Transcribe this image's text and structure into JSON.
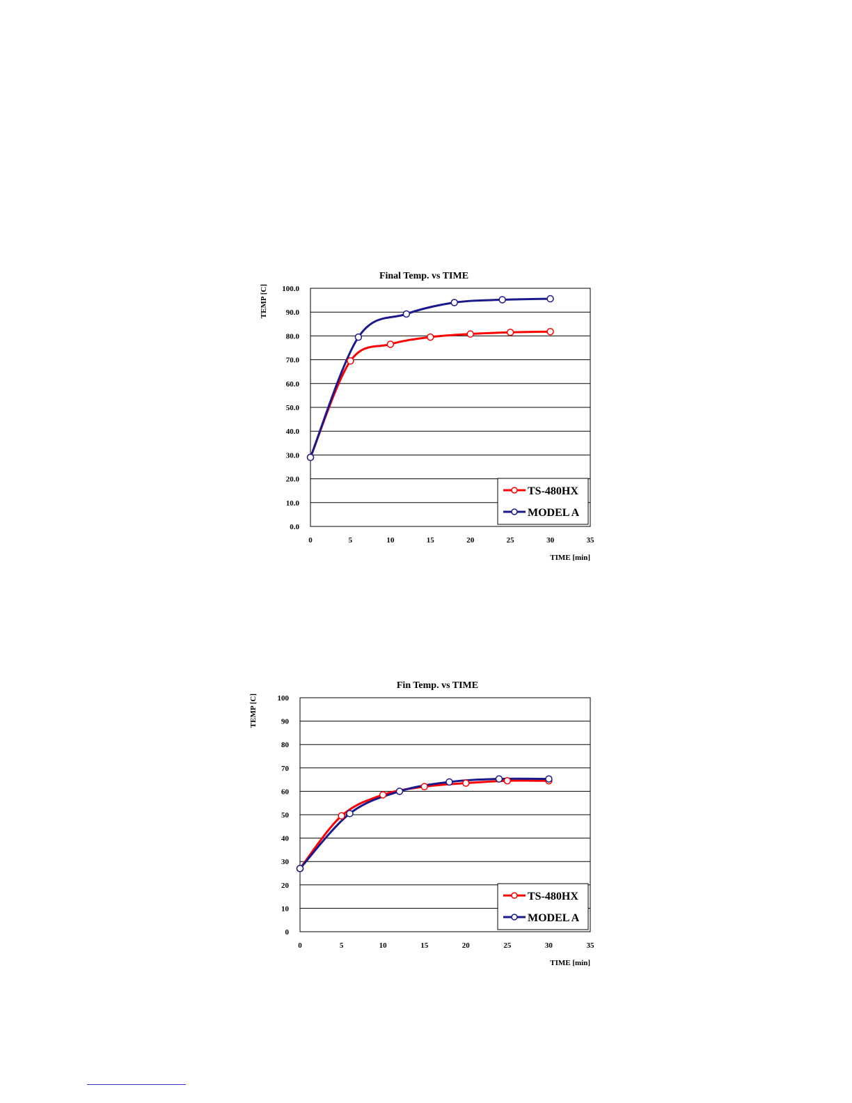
{
  "colors": {
    "series_1": "#ff0000",
    "series_2": "#1a1a8c",
    "grid": "#000000",
    "border": "#000000"
  },
  "chart_data": [
    {
      "type": "line",
      "title": "Final Temp. vs TIME",
      "ylabel": "TEMP [C]",
      "xlabel": "TIME [min]",
      "xlim": [
        0,
        35
      ],
      "ylim": [
        0,
        100
      ],
      "xticks": [
        "0",
        "5",
        "10",
        "15",
        "20",
        "25",
        "30",
        "35"
      ],
      "yticks": [
        "0.0",
        "10.0",
        "20.0",
        "30.0",
        "40.0",
        "50.0",
        "60.0",
        "70.0",
        "80.0",
        "90.0",
        "100.0"
      ],
      "grid": "horizontal",
      "legend": "bottom-right",
      "marker": "diamond",
      "series": [
        {
          "name": "TS-480HX",
          "color": "#ff0000",
          "x": [
            0,
            5,
            10,
            15,
            20,
            25,
            30
          ],
          "y": [
            29,
            69.5,
            76.5,
            79.5,
            80.8,
            81.5,
            81.8
          ]
        },
        {
          "name": "MODEL A",
          "color": "#1a1a8c",
          "x": [
            0,
            6,
            12,
            18,
            24,
            30
          ],
          "y": [
            29,
            79.5,
            89.2,
            94,
            95.2,
            95.6
          ]
        }
      ]
    },
    {
      "type": "line",
      "title": "Fin Temp. vs TIME",
      "ylabel": "TEMP [C]",
      "xlabel": "TIME [min]",
      "xlim": [
        0,
        35
      ],
      "ylim": [
        0,
        100
      ],
      "xticks": [
        "0",
        "5",
        "10",
        "15",
        "20",
        "25",
        "30",
        "35"
      ],
      "yticks": [
        "0",
        "10",
        "20",
        "30",
        "40",
        "50",
        "60",
        "70",
        "80",
        "90",
        "100"
      ],
      "grid": "horizontal",
      "legend": "bottom-right",
      "marker": "diamond",
      "series": [
        {
          "name": "TS-480HX",
          "color": "#ff0000",
          "x": [
            0,
            5,
            10,
            15,
            20,
            25,
            30
          ],
          "y": [
            27,
            49.5,
            58.5,
            62,
            63.5,
            64.5,
            64.5
          ]
        },
        {
          "name": "MODEL A",
          "color": "#1a1a8c",
          "x": [
            0,
            6,
            12,
            18,
            24,
            30
          ],
          "y": [
            27,
            50.5,
            60,
            64,
            65.3,
            65.3
          ]
        }
      ]
    }
  ]
}
